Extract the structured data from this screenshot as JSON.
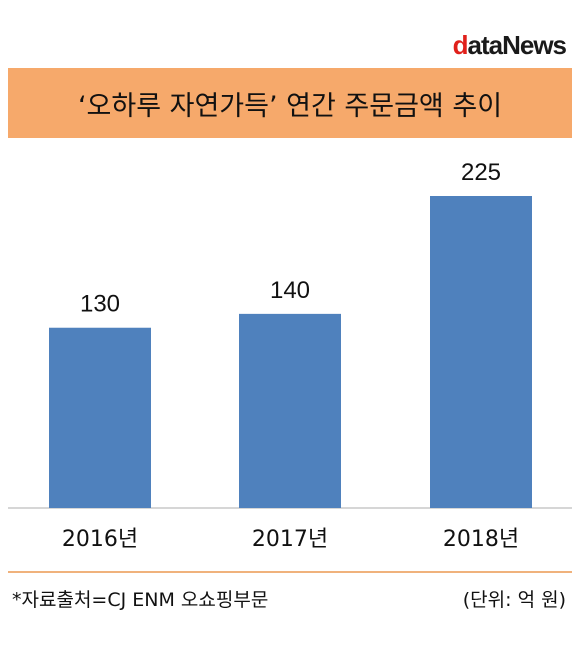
{
  "logo": {
    "d": "d",
    "rest": "ataNews"
  },
  "title": "‘오하루 자연가득’ 연간 주문금액 추이",
  "footer": {
    "source": "*자료출처=CJ ENM 오쇼핑부문",
    "unit": "(단위: 억 원)"
  },
  "colors": {
    "bar": "#4f81bd",
    "title_bg": "#f6a96b"
  },
  "chart_data": {
    "type": "bar",
    "categories": [
      "2016년",
      "2017년",
      "2018년"
    ],
    "values": [
      130,
      140,
      225
    ],
    "data_labels": [
      "130",
      "140",
      "225"
    ],
    "ylim": [
      0,
      250
    ],
    "grid": false,
    "legend": "none"
  }
}
